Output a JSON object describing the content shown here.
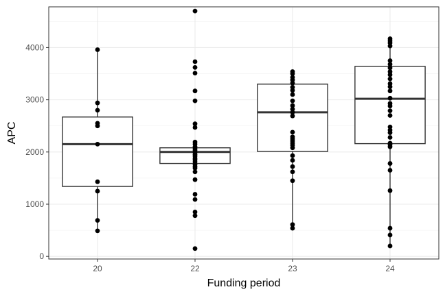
{
  "chart_data": {
    "type": "box",
    "xlabel": "Funding period",
    "ylabel": "APC",
    "ylim": [
      -50,
      4780
    ],
    "yticks": [
      0,
      1000,
      2000,
      3000,
      4000
    ],
    "grid": true,
    "categories": [
      "20",
      "22",
      "23",
      "24"
    ],
    "boxes": [
      {
        "category": "20",
        "whisker_low": 490,
        "q1": 1340,
        "median": 2150,
        "q3": 2670,
        "whisker_high": 3960
      },
      {
        "category": "22",
        "whisker_low": 1780,
        "q1": 1780,
        "median": 2000,
        "q3": 2080,
        "whisker_high": 2080
      },
      {
        "category": "23",
        "whisker_low": 540,
        "q1": 2010,
        "median": 2760,
        "q3": 3300,
        "whisker_high": 3540
      },
      {
        "category": "24",
        "whisker_low": 200,
        "q1": 2160,
        "median": 3020,
        "q3": 3640,
        "whisker_high": 4170
      }
    ],
    "points": [
      {
        "category": "20",
        "values": [
          3960,
          2940,
          2800,
          2550,
          2500,
          2150,
          1430,
          1250,
          690,
          490
        ]
      },
      {
        "category": "22",
        "values": [
          4700,
          3730,
          3620,
          3510,
          3170,
          2980,
          2540,
          2470,
          2190,
          2150,
          2100,
          2060,
          2030,
          1990,
          1950,
          1920,
          1880,
          1850,
          1810,
          1760,
          1720,
          1690,
          1620,
          1470,
          1190,
          1090,
          850,
          780,
          150
        ]
      },
      {
        "category": "23",
        "values": [
          3540,
          3500,
          3430,
          3380,
          3320,
          3240,
          3180,
          3100,
          2980,
          2890,
          2820,
          2760,
          2690,
          2380,
          2290,
          2250,
          2210,
          2170,
          2130,
          2080,
          1930,
          1840,
          1720,
          1620,
          1450,
          610,
          540
        ]
      },
      {
        "category": "24",
        "values": [
          4170,
          4130,
          4090,
          4030,
          3750,
          3680,
          3610,
          3540,
          3480,
          3400,
          3310,
          3250,
          3170,
          3030,
          2930,
          2880,
          2790,
          2700,
          2480,
          2420,
          2370,
          2280,
          2170,
          2140,
          2100,
          1780,
          1650,
          1260,
          540,
          410,
          200
        ]
      }
    ]
  }
}
